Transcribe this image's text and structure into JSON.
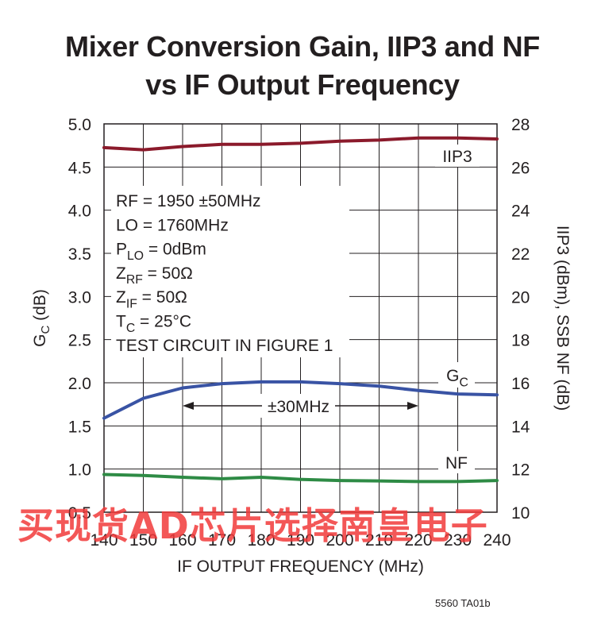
{
  "figure_id": "5560 TA01b",
  "watermark": "买现货AD芯片选择南皇电子",
  "chart_data": {
    "type": "line",
    "title": "Mixer Conversion Gain, IIP3 and NF",
    "subtitle": "vs IF Output Frequency",
    "xlabel": "IF OUTPUT FREQUENCY (MHz)",
    "ylabel_left_main": "G",
    "ylabel_left_sub": "C",
    "ylabel_left_unit": " (dB)",
    "ylabel_right": "IIP3 (dBm), SSB NF (dB)",
    "xlim": [
      140,
      240
    ],
    "ylim_left": [
      0.5,
      5.0
    ],
    "ylim_right": [
      10,
      28
    ],
    "x_ticks": [
      140,
      150,
      160,
      170,
      180,
      190,
      200,
      210,
      220,
      230,
      240
    ],
    "y_left_ticks": [
      "0.5",
      "1.0",
      "1.5",
      "2.0",
      "2.5",
      "3.0",
      "3.5",
      "4.0",
      "4.5",
      "5.0"
    ],
    "y_right_ticks": [
      "10",
      "12",
      "14",
      "16",
      "18",
      "20",
      "22",
      "24",
      "26",
      "28"
    ],
    "grid": true,
    "annotations": {
      "conditions": [
        {
          "main": "RF = 1950 ±50MHz",
          "sub": "",
          "rest": ""
        },
        {
          "main": "LO = 1760MHz",
          "sub": "",
          "rest": ""
        },
        {
          "main": "P",
          "sub": "LO",
          "rest": " = 0dBm"
        },
        {
          "main": "Z",
          "sub": "RF",
          "rest": " = 50Ω"
        },
        {
          "main": "Z",
          "sub": "IF",
          "rest": " = 50Ω"
        },
        {
          "main": "T",
          "sub": "C",
          "rest": " = 25°C"
        },
        {
          "main": "TEST CIRCUIT IN FIGURE 1",
          "sub": "",
          "rest": ""
        }
      ],
      "span_label": "±30MHz",
      "span_range": [
        160,
        220
      ]
    },
    "series": [
      {
        "name": "IIP3",
        "axis": "right",
        "color": "#8b1a2b",
        "label_parts": {
          "main": "IIP3",
          "sub": ""
        },
        "x": [
          140,
          150,
          160,
          170,
          180,
          190,
          200,
          210,
          220,
          230,
          240
        ],
        "values": [
          26.9,
          26.8,
          26.95,
          27.05,
          27.05,
          27.1,
          27.2,
          27.25,
          27.35,
          27.35,
          27.3
        ]
      },
      {
        "name": "GC",
        "axis": "left",
        "color": "#3953a4",
        "label_parts": {
          "main": "G",
          "sub": "C"
        },
        "x": [
          140,
          150,
          160,
          170,
          180,
          190,
          200,
          210,
          220,
          230,
          240
        ],
        "values": [
          1.59,
          1.82,
          1.94,
          1.99,
          2.01,
          2.01,
          1.99,
          1.96,
          1.91,
          1.87,
          1.86
        ]
      },
      {
        "name": "NF",
        "axis": "right",
        "color": "#2e8b45",
        "label_parts": {
          "main": "NF",
          "sub": ""
        },
        "x": [
          140,
          150,
          160,
          170,
          180,
          190,
          200,
          210,
          220,
          230,
          240
        ],
        "values": [
          11.75,
          11.7,
          11.62,
          11.55,
          11.62,
          11.52,
          11.47,
          11.45,
          11.42,
          11.42,
          11.47
        ]
      }
    ]
  }
}
